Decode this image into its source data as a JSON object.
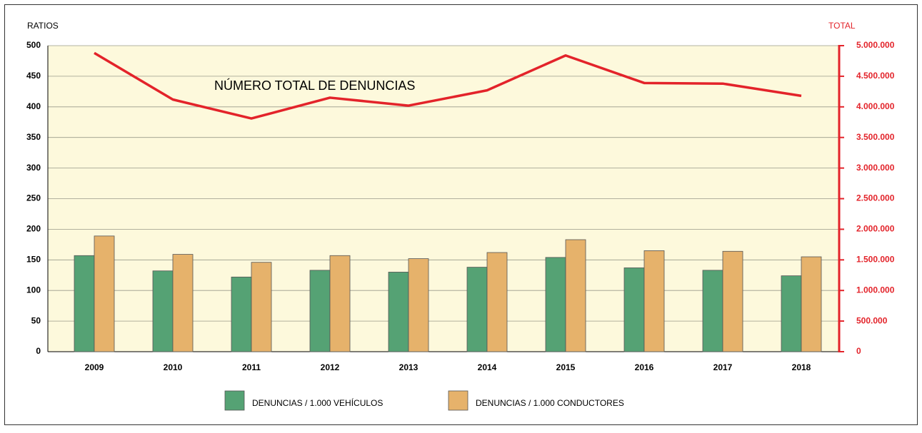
{
  "chart_data": {
    "type": "bar",
    "ylabel": "RATIOS",
    "y2label": "TOTAL",
    "categories": [
      "2009",
      "2010",
      "2011",
      "2012",
      "2013",
      "2014",
      "2015",
      "2016",
      "2017",
      "2018"
    ],
    "series": [
      {
        "name": "DENUNCIAS / 1.000 VEHÍCULOS",
        "color": "#55a274",
        "values": [
          157,
          132,
          122,
          133,
          130,
          138,
          154,
          137,
          133,
          124
        ]
      },
      {
        "name": "DENUNCIAS / 1.000 CONDUCTORES",
        "color": "#e6b26b",
        "values": [
          189,
          159,
          146,
          157,
          152,
          162,
          183,
          165,
          164,
          155
        ]
      },
      {
        "name": "NÚMERO TOTAL DE DENUNCIAS",
        "type": "line",
        "axis": "y2",
        "color": "#e3232a",
        "values": [
          4880000,
          4120000,
          3810000,
          4150000,
          4020000,
          4270000,
          4840000,
          4390000,
          4380000,
          4180000
        ]
      }
    ],
    "ylim": [
      0,
      500
    ],
    "yticks": [
      0,
      50,
      100,
      150,
      200,
      250,
      300,
      350,
      400,
      450,
      500
    ],
    "y2lim": [
      0,
      5000000
    ],
    "y2ticks": [
      0,
      {
        "value": 500000,
        "label": "500.000"
      },
      {
        "value": 1000000,
        "label": "1.000.000"
      },
      {
        "value": 1500000,
        "label": "1.500.000"
      },
      {
        "value": 2000000,
        "label": "2.000.000"
      },
      {
        "value": 2500000,
        "label": "2.500.000"
      },
      {
        "value": 3000000,
        "label": "3.000.000"
      },
      {
        "value": 3500000,
        "label": "3.500.000"
      },
      {
        "value": 4000000,
        "label": "4.000.000"
      },
      {
        "value": 4500000,
        "label": "4.500.000"
      },
      {
        "value": 5000000,
        "label": "5.000.000"
      }
    ],
    "grid": true
  }
}
